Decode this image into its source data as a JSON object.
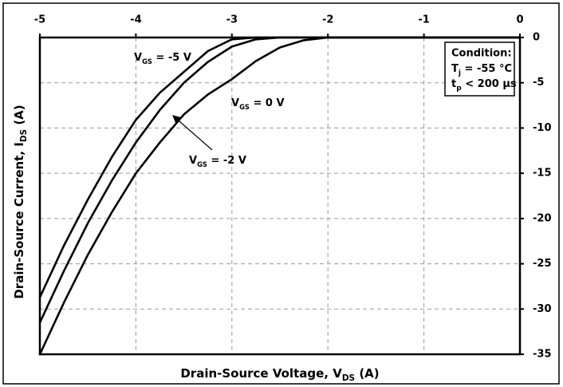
{
  "chart_data": {
    "type": "line",
    "x_label": [
      "Drain-Source Voltage, V",
      "DS",
      " (A)"
    ],
    "y_label": [
      "Drain-Source Current, I",
      "DS",
      " (A)"
    ],
    "x": [
      -5,
      -4.75,
      -4.5,
      -4.25,
      -4,
      -3.75,
      -3.5,
      -3.25,
      -3,
      -2.75,
      -2.5,
      -2.25,
      -2,
      -1,
      0
    ],
    "series": [
      {
        "name": [
          "V",
          "GS",
          " = -5 V"
        ],
        "color": "#000000",
        "values": [
          -28.7,
          -23.0,
          -17.9,
          -13.2,
          -9.1,
          -6.1,
          -3.8,
          -1.5,
          -0.2,
          0,
          0,
          0,
          0,
          0,
          0
        ]
      },
      {
        "name": [
          "V",
          "GS",
          " = -2 V"
        ],
        "color": "#000000",
        "values": [
          -31.5,
          -25.8,
          -20.5,
          -15.8,
          -11.6,
          -8.0,
          -5.0,
          -2.7,
          -1.0,
          -0.2,
          0,
          0,
          0,
          0,
          0
        ]
      },
      {
        "name": [
          "V",
          "GS",
          " = 0 V"
        ],
        "color": "#000000",
        "values": [
          -35,
          -29.3,
          -24.0,
          -19.3,
          -15.0,
          -11.6,
          -8.5,
          -6.3,
          -4.6,
          -2.6,
          -1.1,
          -0.3,
          0,
          0,
          0
        ]
      }
    ],
    "condition": {
      "title": "Condition:",
      "lines": [
        [
          "T",
          "j",
          " = -55 °C"
        ],
        [
          "t",
          "p",
          " < 200 µs"
        ]
      ]
    },
    "xlim": [
      -5,
      0
    ],
    "xticks": [
      -5,
      -4,
      -3,
      -2,
      -1,
      0
    ],
    "ylim": [
      -35,
      0
    ],
    "yticks": [
      0,
      -5,
      -10,
      -15,
      -20,
      -25,
      -30,
      -35
    ],
    "grid": true
  }
}
